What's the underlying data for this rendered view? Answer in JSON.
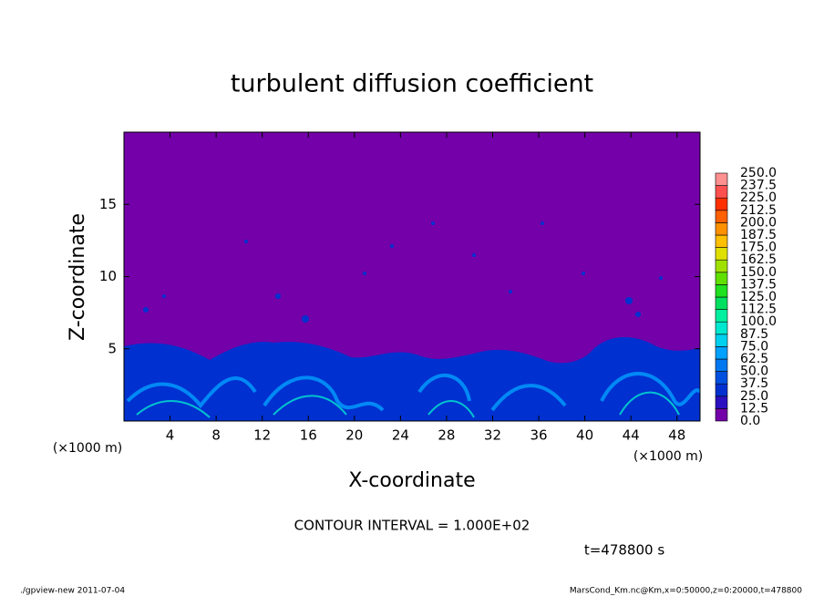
{
  "chart_data": {
    "type": "contour",
    "title": "turbulent diffusion coefficient",
    "x_label": "X-coordinate",
    "y_label": "Z-coordinate",
    "x_unit": "(×1000 m)",
    "y_unit": "(×1000 m)",
    "xlim": [
      0,
      50
    ],
    "ylim": [
      0,
      20
    ],
    "xticks": [
      4,
      8,
      12,
      16,
      20,
      24,
      28,
      32,
      36,
      40,
      44,
      48
    ],
    "yticks": [
      5,
      10,
      15
    ],
    "contour_note": "CONTOUR INTERVAL = 1.000E+02",
    "time_label": "t=478800 s",
    "footer_left": "./gpview-new   2011-07-04",
    "footer_right": "MarsCond_Km.nc@Km,x=0:50000,z=0:20000,t=478800",
    "colorbar": {
      "levels": [
        {
          "value": 0,
          "label": "0.0"
        },
        {
          "value": 12.5,
          "label": "12.5"
        },
        {
          "value": 25,
          "label": "25.0"
        },
        {
          "value": 37.5,
          "label": "37.5"
        },
        {
          "value": 50,
          "label": "50.0"
        },
        {
          "value": 62.5,
          "label": "62.5"
        },
        {
          "value": 75,
          "label": "75.0"
        },
        {
          "value": 87.5,
          "label": "87.5"
        },
        {
          "value": 100,
          "label": "100.0"
        },
        {
          "value": 112.5,
          "label": "112.5"
        },
        {
          "value": 125,
          "label": "125.0"
        },
        {
          "value": 137.5,
          "label": "137.5"
        },
        {
          "value": 150,
          "label": "150.0"
        },
        {
          "value": 162.5,
          "label": "162.5"
        },
        {
          "value": 175,
          "label": "175.0"
        },
        {
          "value": 187.5,
          "label": "187.5"
        },
        {
          "value": 200,
          "label": "200.0"
        },
        {
          "value": 212.5,
          "label": "212.5"
        },
        {
          "value": 225,
          "label": "225.0"
        },
        {
          "value": 237.5,
          "label": "237.5"
        },
        {
          "value": 250,
          "label": "250.0"
        }
      ],
      "colors": [
        "#7300a8",
        "#2a10c0",
        "#0030d0",
        "#0050e0",
        "#0078f0",
        "#00a0ff",
        "#00d0f0",
        "#00e8d0",
        "#00f0a0",
        "#00e060",
        "#20e020",
        "#60e000",
        "#a0e000",
        "#e0e000",
        "#ffc000",
        "#ff9000",
        "#ff6000",
        "#ff3000",
        "#ff5050",
        "#ff9090"
      ]
    }
  }
}
